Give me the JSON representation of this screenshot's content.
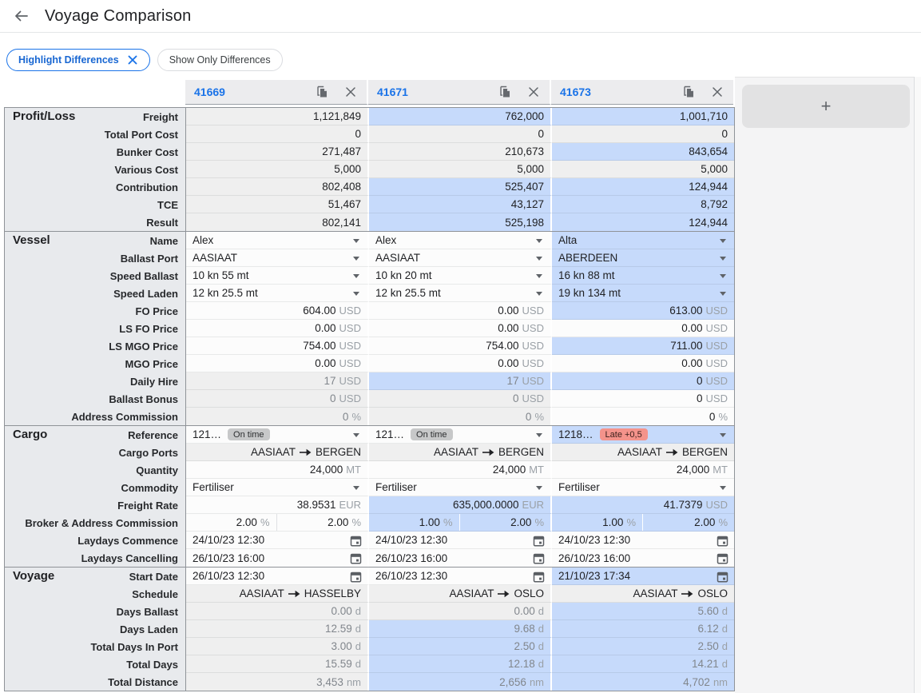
{
  "header": {
    "title": "Voyage Comparison",
    "back_icon": "arrow-left-icon"
  },
  "filters": {
    "highlight": {
      "label": "Highlight Differences",
      "active": true,
      "close_icon": "close-icon"
    },
    "show_only": {
      "label": "Show Only Differences",
      "active": false
    }
  },
  "add_button": {
    "label": "+"
  },
  "colors": {
    "accent_blue": "#1a73e8",
    "highlight_cell": "#c6dafb",
    "readonly_cell": "#efefef",
    "label_column": "#e8eaed",
    "ontime_badge": "#c7c8c9",
    "late_badge": "#f4938b"
  },
  "icons": [
    "arrow-left-icon",
    "close-icon",
    "copy-icon",
    "chevron-down-icon",
    "calendar-icon",
    "arrow-right-icon",
    "plus-icon"
  ],
  "voyages": [
    "41669",
    "41671",
    "41673"
  ],
  "sections": [
    {
      "name": "Profit/Loss",
      "rows": [
        {
          "label": "Freight",
          "type": "num",
          "cells": [
            {
              "t": "1,121,849",
              "bg": "ro"
            },
            {
              "t": "762,000",
              "bg": "hl"
            },
            {
              "t": "1,001,710",
              "bg": "hl"
            }
          ]
        },
        {
          "label": "Total Port Cost",
          "type": "num",
          "cells": [
            {
              "t": "0",
              "bg": "ro"
            },
            {
              "t": "0",
              "bg": "ro"
            },
            {
              "t": "0",
              "bg": "ro"
            }
          ]
        },
        {
          "label": "Bunker Cost",
          "type": "num",
          "cells": [
            {
              "t": "271,487",
              "bg": "ro"
            },
            {
              "t": "210,673",
              "bg": "ro"
            },
            {
              "t": "843,654",
              "bg": "hl"
            }
          ]
        },
        {
          "label": "Various Cost",
          "type": "num",
          "cells": [
            {
              "t": "5,000",
              "bg": "ro"
            },
            {
              "t": "5,000",
              "bg": "ro"
            },
            {
              "t": "5,000",
              "bg": "ro"
            }
          ]
        },
        {
          "label": "Contribution",
          "type": "num",
          "cells": [
            {
              "t": "802,408",
              "bg": "ro"
            },
            {
              "t": "525,407",
              "bg": "hl"
            },
            {
              "t": "124,944",
              "bg": "hl"
            }
          ]
        },
        {
          "label": "TCE",
          "type": "num",
          "cells": [
            {
              "t": "51,467",
              "bg": "ro"
            },
            {
              "t": "43,127",
              "bg": "hl"
            },
            {
              "t": "8,792",
              "bg": "hl"
            }
          ]
        },
        {
          "label": "Result",
          "type": "num",
          "cells": [
            {
              "t": "802,141",
              "bg": "ro"
            },
            {
              "t": "525,198",
              "bg": "hl"
            },
            {
              "t": "124,944",
              "bg": "hl"
            }
          ]
        }
      ]
    },
    {
      "name": "Vessel",
      "rows": [
        {
          "label": "Name",
          "type": "sel",
          "cells": [
            {
              "t": "Alex",
              "bg": "ed"
            },
            {
              "t": "Alex",
              "bg": "ed"
            },
            {
              "t": "Alta",
              "bg": "hl"
            }
          ]
        },
        {
          "label": "Ballast Port",
          "type": "sel",
          "cells": [
            {
              "t": "AASIAAT",
              "bg": "ed"
            },
            {
              "t": "AASIAAT",
              "bg": "ed"
            },
            {
              "t": "ABERDEEN",
              "bg": "hl"
            }
          ]
        },
        {
          "label": "Speed Ballast",
          "type": "sel",
          "cells": [
            {
              "t": "10 kn 55 mt",
              "bg": "ed"
            },
            {
              "t": "10 kn 20 mt",
              "bg": "ed"
            },
            {
              "t": "16 kn 88 mt",
              "bg": "hl"
            }
          ]
        },
        {
          "label": "Speed Laden",
          "type": "sel",
          "cells": [
            {
              "t": "12 kn 25.5 mt",
              "bg": "ed"
            },
            {
              "t": "12 kn 25.5 mt",
              "bg": "ed"
            },
            {
              "t": "19 kn 134 mt",
              "bg": "hl"
            }
          ]
        },
        {
          "label": "FO Price",
          "type": "unit",
          "cells": [
            {
              "t": "604.00",
              "u": "USD",
              "bg": "ed"
            },
            {
              "t": "0.00",
              "u": "USD",
              "bg": "ed"
            },
            {
              "t": "613.00",
              "u": "USD",
              "bg": "hl"
            }
          ]
        },
        {
          "label": "LS FO Price",
          "type": "unit",
          "cells": [
            {
              "t": "0.00",
              "u": "USD",
              "bg": "ed"
            },
            {
              "t": "0.00",
              "u": "USD",
              "bg": "ed"
            },
            {
              "t": "0.00",
              "u": "USD",
              "bg": "ed"
            }
          ]
        },
        {
          "label": "LS MGO Price",
          "type": "unit",
          "cells": [
            {
              "t": "754.00",
              "u": "USD",
              "bg": "ed"
            },
            {
              "t": "754.00",
              "u": "USD",
              "bg": "ed"
            },
            {
              "t": "711.00",
              "u": "USD",
              "bg": "hl"
            }
          ]
        },
        {
          "label": "MGO Price",
          "type": "unit",
          "cells": [
            {
              "t": "0.00",
              "u": "USD",
              "bg": "ed"
            },
            {
              "t": "0.00",
              "u": "USD",
              "bg": "ed"
            },
            {
              "t": "0.00",
              "u": "USD",
              "bg": "ed"
            }
          ]
        },
        {
          "label": "Daily Hire",
          "type": "unit",
          "cells": [
            {
              "t": "17",
              "u": "USD",
              "bg": "ro",
              "m": true
            },
            {
              "t": "17",
              "u": "USD",
              "bg": "hl",
              "m": true
            },
            {
              "t": "0",
              "u": "USD",
              "bg": "hl"
            }
          ]
        },
        {
          "label": "Ballast Bonus",
          "type": "unit",
          "cells": [
            {
              "t": "0",
              "u": "USD",
              "bg": "ro",
              "m": true
            },
            {
              "t": "0",
              "u": "USD",
              "bg": "ro",
              "m": true
            },
            {
              "t": "0",
              "u": "USD",
              "bg": "ed"
            }
          ]
        },
        {
          "label": "Address Commission",
          "type": "unit",
          "cells": [
            {
              "t": "0",
              "u": "%",
              "bg": "ro",
              "m": true
            },
            {
              "t": "0",
              "u": "%",
              "bg": "ro",
              "m": true
            },
            {
              "t": "0",
              "u": "%",
              "bg": "ed"
            }
          ]
        }
      ]
    },
    {
      "name": "Cargo",
      "rows": [
        {
          "label": "Reference",
          "type": "ref",
          "cells": [
            {
              "t": "121…",
              "badge": {
                "label": "On time",
                "kind": "ontime"
              },
              "bg": "ed"
            },
            {
              "t": "121…",
              "badge": {
                "label": "On time",
                "kind": "ontime"
              },
              "bg": "ed"
            },
            {
              "t": "1218…",
              "badge": {
                "label": "Late +0,5",
                "kind": "late"
              },
              "bg": "hl"
            }
          ]
        },
        {
          "label": "Cargo Ports",
          "type": "ports",
          "cells": [
            {
              "from": "AASIAAT",
              "to": "BERGEN",
              "bg": "ro"
            },
            {
              "from": "AASIAAT",
              "to": "BERGEN",
              "bg": "ro"
            },
            {
              "from": "AASIAAT",
              "to": "BERGEN",
              "bg": "ro"
            }
          ]
        },
        {
          "label": "Quantity",
          "type": "unit",
          "cells": [
            {
              "t": "24,000",
              "u": "MT",
              "bg": "ed"
            },
            {
              "t": "24,000",
              "u": "MT",
              "bg": "ed"
            },
            {
              "t": "24,000",
              "u": "MT",
              "bg": "ed"
            }
          ]
        },
        {
          "label": "Commodity",
          "type": "sel",
          "cells": [
            {
              "t": "Fertiliser",
              "bg": "ed"
            },
            {
              "t": "Fertiliser",
              "bg": "ed"
            },
            {
              "t": "Fertiliser",
              "bg": "ed"
            }
          ]
        },
        {
          "label": "Freight Rate",
          "type": "unit",
          "cells": [
            {
              "t": "38.9531",
              "u": "EUR",
              "bg": "ed"
            },
            {
              "t": "635,000.0000",
              "u": "EUR",
              "bg": "hl"
            },
            {
              "t": "41.7379",
              "u": "USD",
              "bg": "hl"
            }
          ]
        },
        {
          "label": "Broker & Address Commission",
          "type": "dual",
          "cells": [
            {
              "vals": [
                {
                  "t": "2.00",
                  "u": "%"
                },
                {
                  "t": "2.00",
                  "u": "%"
                }
              ],
              "bg": "ed"
            },
            {
              "vals": [
                {
                  "t": "1.00",
                  "u": "%"
                },
                {
                  "t": "2.00",
                  "u": "%"
                }
              ],
              "bg": "hl"
            },
            {
              "vals": [
                {
                  "t": "1.00",
                  "u": "%"
                },
                {
                  "t": "2.00",
                  "u": "%"
                }
              ],
              "bg": "hl"
            }
          ]
        },
        {
          "label": "Laydays Commence",
          "type": "date",
          "cells": [
            {
              "t": "24/10/23 12:30",
              "bg": "ed"
            },
            {
              "t": "24/10/23 12:30",
              "bg": "ed"
            },
            {
              "t": "24/10/23 12:30",
              "bg": "ed"
            }
          ]
        },
        {
          "label": "Laydays Cancelling",
          "type": "date",
          "cells": [
            {
              "t": "26/10/23 16:00",
              "bg": "ed"
            },
            {
              "t": "26/10/23 16:00",
              "bg": "ed"
            },
            {
              "t": "26/10/23 16:00",
              "bg": "ed"
            }
          ]
        }
      ]
    },
    {
      "name": "Voyage",
      "rows": [
        {
          "label": "Start Date",
          "type": "date",
          "cells": [
            {
              "t": "26/10/23 12:30",
              "bg": "ed"
            },
            {
              "t": "26/10/23 12:30",
              "bg": "ed"
            },
            {
              "t": "21/10/23 17:34",
              "bg": "hl"
            }
          ]
        },
        {
          "label": "Schedule",
          "type": "ports",
          "cells": [
            {
              "from": "AASIAAT",
              "to": "HASSELBY",
              "bg": "ro"
            },
            {
              "from": "AASIAAT",
              "to": "OSLO",
              "bg": "ro"
            },
            {
              "from": "AASIAAT",
              "to": "OSLO",
              "bg": "ro"
            }
          ]
        },
        {
          "label": "Days Ballast",
          "type": "unit",
          "cells": [
            {
              "t": "0.00",
              "u": "d",
              "bg": "ro",
              "m": true
            },
            {
              "t": "0.00",
              "u": "d",
              "bg": "ro",
              "m": true
            },
            {
              "t": "5.60",
              "u": "d",
              "bg": "hl",
              "m": true
            }
          ]
        },
        {
          "label": "Days Laden",
          "type": "unit",
          "cells": [
            {
              "t": "12.59",
              "u": "d",
              "bg": "ro",
              "m": true
            },
            {
              "t": "9.68",
              "u": "d",
              "bg": "hl",
              "m": true
            },
            {
              "t": "6.12",
              "u": "d",
              "bg": "hl",
              "m": true
            }
          ]
        },
        {
          "label": "Total Days In Port",
          "type": "unit",
          "cells": [
            {
              "t": "3.00",
              "u": "d",
              "bg": "ro",
              "m": true
            },
            {
              "t": "2.50",
              "u": "d",
              "bg": "hl",
              "m": true
            },
            {
              "t": "2.50",
              "u": "d",
              "bg": "hl",
              "m": true
            }
          ]
        },
        {
          "label": "Total Days",
          "type": "unit",
          "cells": [
            {
              "t": "15.59",
              "u": "d",
              "bg": "ro",
              "m": true
            },
            {
              "t": "12.18",
              "u": "d",
              "bg": "hl",
              "m": true
            },
            {
              "t": "14.21",
              "u": "d",
              "bg": "hl",
              "m": true
            }
          ]
        },
        {
          "label": "Total Distance",
          "type": "unit",
          "cells": [
            {
              "t": "3,453",
              "u": "nm",
              "bg": "ro",
              "m": true
            },
            {
              "t": "2,656",
              "u": "nm",
              "bg": "hl",
              "m": true
            },
            {
              "t": "4,702",
              "u": "nm",
              "bg": "hl",
              "m": true
            }
          ]
        }
      ]
    }
  ]
}
